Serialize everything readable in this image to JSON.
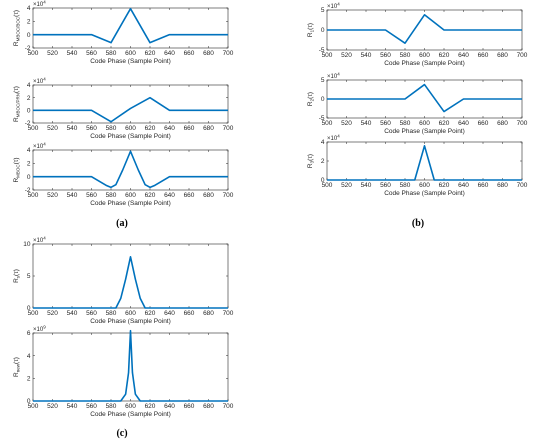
{
  "colors": {
    "line": "#0072BD",
    "axis": "#262626",
    "grid": "#e6e6e6"
  },
  "panel_labels": {
    "a": "(a)",
    "b": "(b)",
    "c": "(c)"
  },
  "chart_data": [
    {
      "type": "line",
      "panel": "a",
      "ylabel": "R_{MBOC/BOC}(τ)",
      "xlabel": "Code Phase (Sample Point)",
      "exponent": "×10^4",
      "xlim": [
        500,
        700
      ],
      "ylim": [
        -2,
        4
      ],
      "yticks": [
        -2,
        0,
        2,
        4
      ],
      "xticks": [
        500,
        520,
        540,
        560,
        580,
        600,
        620,
        640,
        660,
        680,
        700
      ],
      "series": [
        {
          "x": [
            500,
            560,
            580,
            600,
            620,
            640,
            700
          ],
          "y": [
            0,
            0,
            -1.2,
            3.9,
            -1.2,
            0,
            0
          ]
        }
      ]
    },
    {
      "type": "line",
      "panel": "a",
      "ylabel": "R_{MBOC/PRN}(τ)",
      "xlabel": "Code Phase (Sample Point)",
      "exponent": "×10^4",
      "xlim": [
        500,
        700
      ],
      "ylim": [
        -2,
        4
      ],
      "yticks": [
        -2,
        0,
        2,
        4
      ],
      "xticks": [
        500,
        520,
        540,
        560,
        580,
        600,
        620,
        640,
        660,
        680,
        700
      ],
      "series": [
        {
          "x": [
            500,
            560,
            580,
            600,
            620,
            640,
            700
          ],
          "y": [
            0,
            0,
            -1.8,
            0.3,
            2.0,
            0,
            0
          ]
        }
      ]
    },
    {
      "type": "line",
      "panel": "a",
      "ylabel": "R_{MBOC}(τ)",
      "xlabel": "Code Phase (Sample Point)",
      "exponent": "×10^4",
      "xlim": [
        500,
        700
      ],
      "ylim": [
        -2,
        4
      ],
      "yticks": [
        -2,
        0,
        2,
        4
      ],
      "xticks": [
        500,
        520,
        540,
        560,
        580,
        600,
        620,
        640,
        660,
        680,
        700
      ],
      "series": [
        {
          "x": [
            500,
            560,
            575,
            580,
            585,
            592,
            600,
            608,
            615,
            620,
            625,
            640,
            700
          ],
          "y": [
            0,
            0,
            -1.3,
            -1.6,
            -1.2,
            1.0,
            3.8,
            1.0,
            -1.2,
            -1.6,
            -1.3,
            0,
            0
          ]
        }
      ]
    },
    {
      "type": "line",
      "panel": "b",
      "ylabel": "R_1(τ)",
      "xlabel": "Code Phase (Sample Point)",
      "exponent": "×10^4",
      "xlim": [
        500,
        700
      ],
      "ylim": [
        -5,
        5
      ],
      "yticks": [
        -5,
        0,
        5
      ],
      "xticks": [
        500,
        520,
        540,
        560,
        580,
        600,
        620,
        640,
        660,
        680,
        700
      ],
      "series": [
        {
          "x": [
            500,
            560,
            580,
            600,
            620,
            700
          ],
          "y": [
            0,
            0,
            -3.3,
            3.8,
            0,
            0
          ]
        }
      ]
    },
    {
      "type": "line",
      "panel": "b",
      "ylabel": "R_2(τ)",
      "xlabel": "Code Phase (Sample Point)",
      "exponent": "×10^4",
      "xlim": [
        500,
        700
      ],
      "ylim": [
        -5,
        5
      ],
      "yticks": [
        -5,
        0,
        5
      ],
      "xticks": [
        500,
        520,
        540,
        560,
        580,
        600,
        620,
        640,
        660,
        680,
        700
      ],
      "series": [
        {
          "x": [
            500,
            580,
            600,
            620,
            640,
            700
          ],
          "y": [
            0,
            0,
            3.8,
            -3.3,
            0,
            0
          ]
        }
      ]
    },
    {
      "type": "line",
      "panel": "b",
      "ylabel": "R_3(τ)",
      "xlabel": "Code Phase (Sample Point)",
      "exponent": "×10^4",
      "xlim": [
        500,
        700
      ],
      "ylim": [
        0,
        4
      ],
      "yticks": [
        0,
        2,
        4
      ],
      "xticks": [
        500,
        520,
        540,
        560,
        580,
        600,
        620,
        640,
        660,
        680,
        700
      ],
      "series": [
        {
          "x": [
            500,
            590,
            600,
            610,
            700
          ],
          "y": [
            0,
            0,
            3.6,
            0,
            0
          ]
        }
      ]
    },
    {
      "type": "line",
      "panel": "c",
      "ylabel": "R_s(τ)",
      "xlabel": "Code Phase (Sample Point)",
      "exponent": "×10^4",
      "xlim": [
        500,
        700
      ],
      "ylim": [
        0,
        10
      ],
      "yticks": [
        0,
        5,
        10
      ],
      "xticks": [
        500,
        520,
        540,
        560,
        580,
        600,
        620,
        640,
        660,
        680,
        700
      ],
      "series": [
        {
          "x": [
            500,
            585,
            590,
            595,
            600,
            605,
            610,
            615,
            700
          ],
          "y": [
            0,
            0,
            1.5,
            4.5,
            8.0,
            4.5,
            1.5,
            0,
            0
          ]
        }
      ]
    },
    {
      "type": "line",
      "panel": "c",
      "ylabel": "R_new(τ)",
      "xlabel": "Code Phase (Sample Point)",
      "exponent": "×10^9",
      "xlim": [
        500,
        700
      ],
      "ylim": [
        0,
        6
      ],
      "yticks": [
        0,
        2,
        4,
        6
      ],
      "xticks": [
        500,
        520,
        540,
        560,
        580,
        600,
        620,
        640,
        660,
        680,
        700
      ],
      "series": [
        {
          "x": [
            500,
            590,
            595,
            598,
            600,
            602,
            605,
            610,
            700
          ],
          "y": [
            0,
            0,
            0.6,
            2.5,
            6.2,
            2.5,
            0.6,
            0,
            0
          ]
        }
      ]
    }
  ]
}
